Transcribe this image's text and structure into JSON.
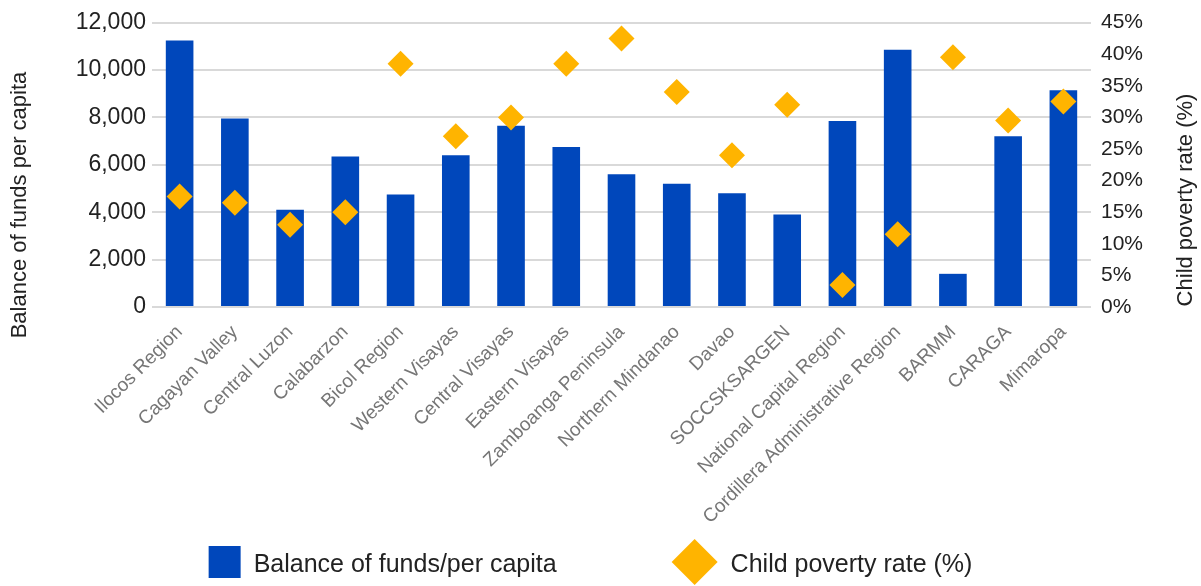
{
  "chart_data": {
    "type": "bar",
    "categories": [
      "Ilocos Region",
      "Cagayan Valley",
      "Central Luzon",
      "Calabarzon",
      "Bicol Region",
      "Western Visayas",
      "Central Visayas",
      "Eastern Visayas",
      "Zamboanga Peninsula",
      "Northern Mindanao",
      "Davao",
      "SOCCSKSARGEN",
      "National Capital Region",
      "Cordillera Administrative Region",
      "BARMM",
      "CARAGA",
      "Mimaropa"
    ],
    "series": [
      {
        "name": "Balance of funds/per capita",
        "color": "#0047bb",
        "values": [
          11250,
          7950,
          4100,
          6350,
          4750,
          6400,
          7650,
          6750,
          5600,
          5200,
          4800,
          3900,
          7850,
          10850,
          1400,
          7200,
          9150
        ]
      },
      {
        "name": "Child poverty rate (%)",
        "type": "scatter",
        "axis": "y2",
        "marker": "diamond",
        "color": "#ffb400",
        "values": [
          17.5,
          16.5,
          13,
          15,
          38.5,
          27,
          30,
          38.5,
          42.5,
          34,
          24,
          32,
          3.5,
          11.5,
          39.5,
          29.5,
          32.5
        ]
      }
    ],
    "ylabel": "Balance of funds per capita",
    "y2label": "Child poverty rate (%)",
    "ylim": [
      0,
      12000
    ],
    "yticks": [
      0,
      {
        "value": 2000,
        "label": "2,000"
      },
      {
        "value": 4000,
        "label": "4,000"
      },
      {
        "value": 6000,
        "label": "6,000"
      },
      {
        "value": 8000,
        "label": "8,000"
      },
      {
        "value": 10000,
        "label": "10,000"
      },
      {
        "value": 12000,
        "label": "12,000"
      }
    ],
    "y2lim": [
      0,
      45
    ],
    "y2ticks": [
      {
        "value": 0,
        "label": "0%"
      },
      {
        "value": 5,
        "label": "5%"
      },
      {
        "value": 10,
        "label": "10%"
      },
      {
        "value": 15,
        "label": "15%"
      },
      {
        "value": 20,
        "label": "20%"
      },
      {
        "value": 25,
        "label": "25%"
      },
      {
        "value": 30,
        "label": "30%"
      },
      {
        "value": 35,
        "label": "35%"
      },
      {
        "value": 40,
        "label": "40%"
      },
      {
        "value": 45,
        "label": "45%"
      }
    ],
    "grid": "y",
    "legend": "bottom"
  }
}
